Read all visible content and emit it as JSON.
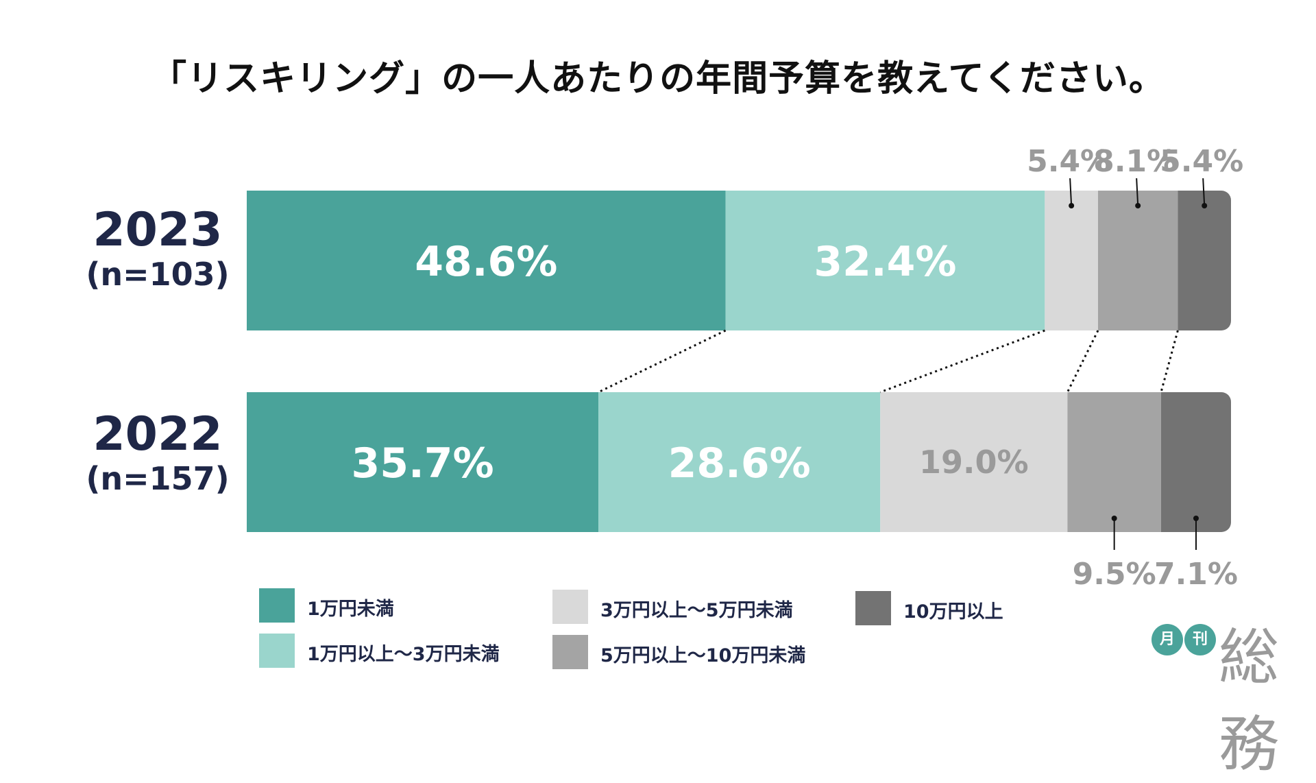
{
  "chart_data": {
    "type": "bar",
    "orientation": "horizontal-stacked-100",
    "title": "「リスキリング」の一人あたりの年間予算を教えてください。",
    "categories": [
      "1万円未満",
      "1万円以上〜3万円未満",
      "3万円以上〜5万円未満",
      "5万円以上〜10万円未満",
      "10万円以上"
    ],
    "colors": [
      "#4aa39a",
      "#9ad5cc",
      "#d9d9d9",
      "#a4a4a4",
      "#737373"
    ],
    "rows": [
      {
        "year": "2023",
        "n_label": "(n=103)",
        "values": [
          48.6,
          32.4,
          5.4,
          8.1,
          5.4
        ],
        "labels": [
          "48.6%",
          "32.4%",
          "5.4%",
          "8.1%",
          "5.4%"
        ]
      },
      {
        "year": "2022",
        "n_label": "(n=157)",
        "values": [
          35.7,
          28.6,
          19.0,
          9.5,
          7.1
        ],
        "labels": [
          "35.7%",
          "28.6%",
          "19.0%",
          "9.5%",
          "7.1%"
        ]
      }
    ]
  },
  "legend": [
    {
      "label": "1万円未満",
      "color": "#4aa39a"
    },
    {
      "label": "1万円以上〜3万円未満",
      "color": "#9ad5cc"
    },
    {
      "label": "3万円以上〜5万円未満",
      "color": "#d9d9d9"
    },
    {
      "label": "5万円以上〜10万円未満",
      "color": "#a4a4a4"
    },
    {
      "label": "10万円以上",
      "color": "#737373"
    }
  ],
  "logo": {
    "circle1": "月",
    "circle2": "刊",
    "text": "総務"
  }
}
